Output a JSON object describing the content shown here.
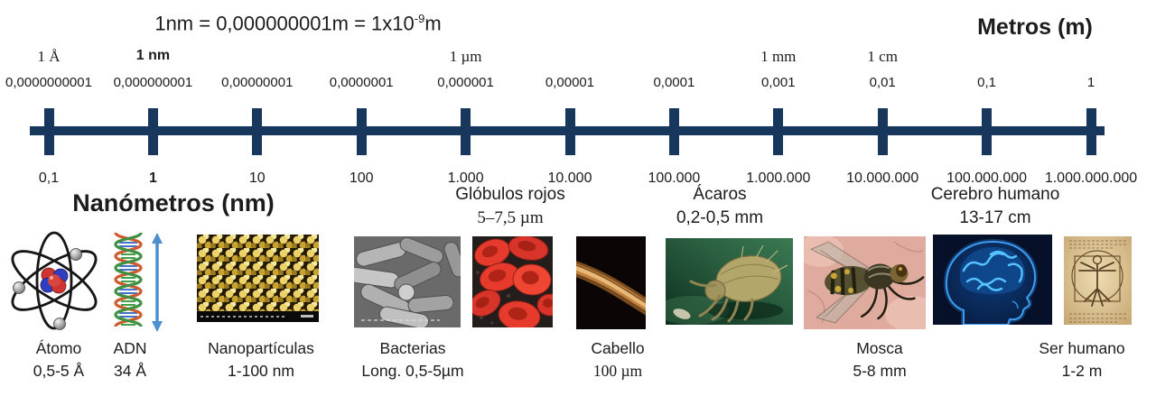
{
  "title": {
    "prefix": "1nm = 0,000000001m = 1x10",
    "sup": "-9",
    "suffix": "m"
  },
  "meters_axis": {
    "heading": "Metros (m)",
    "unit_markers": [
      {
        "label": "1 Å",
        "tick": 0,
        "bold": false
      },
      {
        "label": "1 nm",
        "tick": 1,
        "bold": true
      },
      {
        "label": "1 µm",
        "tick": 4,
        "bold": false
      },
      {
        "label": "1 mm",
        "tick": 7,
        "bold": false
      },
      {
        "label": "1 cm",
        "tick": 8,
        "bold": false
      }
    ],
    "values": [
      "0,0000000001",
      "0,000000001",
      "0,00000001",
      "0,0000001",
      "0,000001",
      "0,00001",
      "0,0001",
      "0,001",
      "0,01",
      "0,1",
      "1"
    ]
  },
  "nanometers_axis": {
    "heading": "Nanómetros (nm)",
    "values": [
      "0,1",
      "1",
      "10",
      "100",
      "1.000",
      "10.000",
      "100.000",
      "1.000.000",
      "10.000.000",
      "100.000.000",
      "1.000.000.000"
    ],
    "bold_value_index": 1
  },
  "ruler_color": "#17375c",
  "annotations": [
    {
      "name": "Glóbulos rojos",
      "size": "5–7,5 µm"
    },
    {
      "name": "Ácaros",
      "size": "0,2-0,5 mm"
    },
    {
      "name": "Cerebro humano",
      "size": "13-17 cm"
    }
  ],
  "specimens": [
    {
      "image": "atom-diagram",
      "caption": "Átomo",
      "size": "0,5-5 Å"
    },
    {
      "image": "dna-helix",
      "caption": "ADN",
      "size": "34 Å"
    },
    {
      "image": "nanoparticles-micrograph",
      "caption": "Nanopartículas",
      "size": "1-100 nm"
    },
    {
      "image": "bacteria-micrograph",
      "caption": "Bacterias",
      "size": "Long. 0,5-5µm"
    },
    {
      "image": "red-blood-cells-micrograph"
    },
    {
      "image": "hair-micrograph",
      "caption": "Cabello",
      "size": "100 µm"
    },
    {
      "image": "mite-micrograph"
    },
    {
      "image": "fly-photo",
      "caption": "Mosca",
      "size": "5-8 mm"
    },
    {
      "image": "brain-scan"
    },
    {
      "image": "vitruvian-man-drawing",
      "caption": "Ser humano",
      "size": "1-2 m"
    }
  ]
}
